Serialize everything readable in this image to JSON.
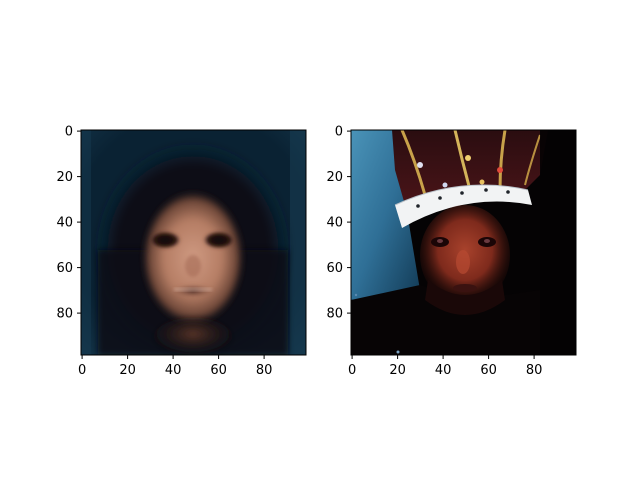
{
  "figure": {
    "background": "#ffffff",
    "panels": [
      {
        "id": "left",
        "subject": "blurred average face with dark hair on dark teal background",
        "x_ticks": [
          "0",
          "20",
          "40",
          "60",
          "80"
        ],
        "y_ticks": [
          "0",
          "20",
          "40",
          "60",
          "80"
        ],
        "x_range": [
          0,
          99
        ],
        "y_range": [
          0,
          99
        ]
      },
      {
        "id": "right",
        "subject": "man wearing a crown, face lit red, against blue background",
        "x_ticks": [
          "0",
          "20",
          "40",
          "60",
          "80"
        ],
        "y_ticks": [
          "0",
          "20",
          "40",
          "60",
          "80"
        ],
        "x_range": [
          0,
          99
        ],
        "y_range": [
          0,
          99
        ]
      }
    ]
  }
}
